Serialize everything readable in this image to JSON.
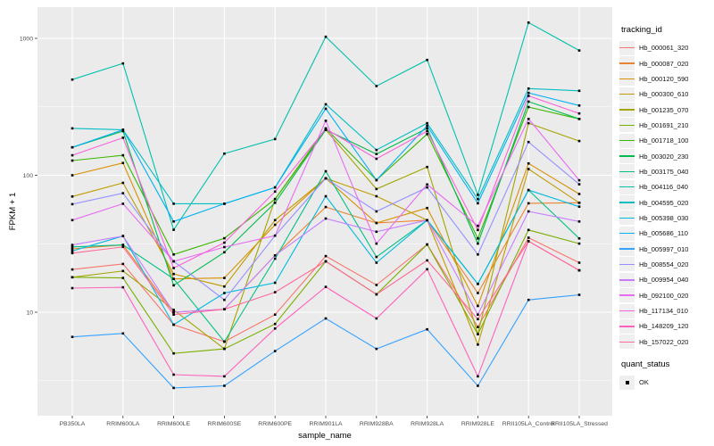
{
  "axes": {
    "y_label": "FPKM + 1",
    "x_label": "sample_name",
    "y_tick_labels": [
      "1000",
      "100",
      "10"
    ]
  },
  "legend": {
    "tracking_title": "tracking_id",
    "quant_title": "quant_status",
    "quant_entries": [
      {
        "label": "OK"
      }
    ]
  },
  "colors": {
    "background": "#FFFFFF",
    "panel_bg": "#EBEBEB",
    "grid": "#FFFFFF",
    "tick_label": "#4D4D4D",
    "tick_mark": "#333333",
    "axis_title": "#000000",
    "point": "#000000",
    "legend_key_bg": "#EFEFEF"
  },
  "chart_data": {
    "type": "line",
    "title": "",
    "xlabel": "sample_name",
    "ylabel": "FPKM + 1",
    "y_scale": "log10",
    "ylim": [
      1.8,
      1400
    ],
    "y_major_ticks": [
      10,
      100,
      1000
    ],
    "y_minor_ticks": [
      3.162,
      31.62,
      316.2
    ],
    "grid": true,
    "legend_position": "right",
    "point_marker": "black-square (quant_status OK)",
    "categories": [
      "PB350LA",
      "RRIM600LA",
      "RRIM600LE",
      "RRIM600SE",
      "RRIM600PE",
      "RRIM901LA",
      "RRIM928BA",
      "RRIM928LA",
      "RRIM928LE",
      "RRII105LA_Control",
      "RRII105LA_Stressed"
    ],
    "series": [
      {
        "name": "Hb_000061_320",
        "color": "#F8766D",
        "values": [
          20.5,
          22.5,
          8.1,
          6.1,
          9.6,
          25.7,
          15.8,
          31.2,
          7.8,
          35,
          23
        ]
      },
      {
        "name": "Hb_000087_020",
        "color": "#EA8331",
        "values": [
          29,
          31,
          10,
          10.5,
          26,
          58.6,
          44.8,
          47,
          13.8,
          62.4,
          63
        ]
      },
      {
        "name": "Hb_000120_590",
        "color": "#D89000",
        "values": [
          100,
          123,
          17.5,
          17.8,
          43.5,
          95,
          44.8,
          57.7,
          11.1,
          122,
          73
        ]
      },
      {
        "name": "Hb_000300_610",
        "color": "#C09B00",
        "values": [
          70,
          88,
          19,
          15.4,
          47,
          95,
          70.3,
          47,
          5.8,
          111,
          63
        ]
      },
      {
        "name": "Hb_001235_070",
        "color": "#A3A500",
        "values": [
          18,
          20,
          10.4,
          5.4,
          67,
          215,
          79.4,
          115,
          6.9,
          240,
          178
        ]
      },
      {
        "name": "Hb_001691_210",
        "color": "#7CAE00",
        "values": [
          18,
          17.8,
          5,
          5.4,
          8.2,
          23.5,
          13.5,
          31.2,
          6.9,
          39.9,
          31.7
        ]
      },
      {
        "name": "Hb_001718_100",
        "color": "#39B600",
        "values": [
          128,
          140,
          26.4,
          34.7,
          67,
          220,
          92.2,
          200,
          34.6,
          315,
          258
        ]
      },
      {
        "name": "Hb_003020_230",
        "color": "#00BB4E",
        "values": [
          160,
          210,
          15.7,
          27.4,
          63,
          215,
          143,
          220,
          31.7,
          345,
          258
        ]
      },
      {
        "name": "Hb_003175_040",
        "color": "#00C087",
        "values": [
          30,
          31,
          17.5,
          6.1,
          24.6,
          107,
          25.3,
          47,
          16.1,
          78,
          34.6
        ]
      },
      {
        "name": "Hb_004116_040",
        "color": "#00C1AB",
        "values": [
          500,
          656,
          40,
          144,
          184,
          1027,
          448,
          696,
          72,
          1305,
          815
        ]
      },
      {
        "name": "Hb_004595_020",
        "color": "#00BFC4",
        "values": [
          220,
          215,
          62,
          62,
          81.5,
          330,
          153,
          240,
          67,
          430,
          414
        ]
      },
      {
        "name": "Hb_005398_030",
        "color": "#00BAE0",
        "values": [
          28,
          36,
          8.1,
          13.8,
          16.4,
          70.3,
          23,
          47,
          16.1,
          78,
          59
        ]
      },
      {
        "name": "Hb_005686_110",
        "color": "#00B0F6",
        "values": [
          160,
          215,
          46,
          62,
          81.5,
          306,
          92.2,
          230,
          62.4,
          400,
          323
        ]
      },
      {
        "name": "Hb_005997_010",
        "color": "#35A2FF",
        "values": [
          6.6,
          7,
          2.8,
          2.9,
          5.2,
          9,
          5.4,
          7.5,
          2.9,
          12.3,
          13.4
        ]
      },
      {
        "name": "Hb_008554_020",
        "color": "#9590FF",
        "values": [
          61.5,
          74,
          23.5,
          12.3,
          36.2,
          95,
          54.5,
          81.5,
          26.4,
          175,
          86
        ]
      },
      {
        "name": "Hb_009954_040",
        "color": "#C77CFF",
        "values": [
          31,
          36,
          10,
          10.5,
          26,
          48.3,
          38.7,
          47,
          9.6,
          54.5,
          46
        ]
      },
      {
        "name": "Hb_092100_020",
        "color": "#E76BF3",
        "values": [
          47,
          62,
          23.5,
          29.9,
          36.2,
          250,
          31.7,
          85.7,
          42.7,
          258,
          92
        ]
      },
      {
        "name": "Hb_117134_010",
        "color": "#FA62DB",
        "values": [
          140,
          188,
          21,
          32.2,
          76,
          218,
          132,
          210,
          39.9,
          380,
          283
        ]
      },
      {
        "name": "Hb_148209_120",
        "color": "#FF62BC",
        "values": [
          15,
          15.2,
          3.5,
          3.4,
          7.6,
          15.3,
          9,
          20.6,
          3.4,
          33,
          20.2
        ]
      },
      {
        "name": "Hb_157022_020",
        "color": "#FF6A98",
        "values": [
          27,
          30,
          9.6,
          10.5,
          14,
          23.5,
          13.5,
          23.9,
          8.9,
          33,
          20.2
        ]
      }
    ]
  }
}
